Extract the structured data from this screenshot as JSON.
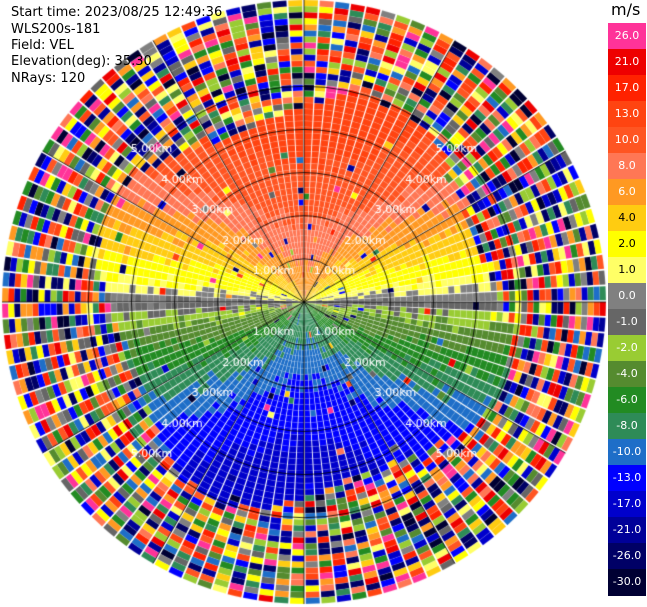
{
  "header": {
    "start_time": "Start time: 2023/08/25 12:49:36",
    "instrument": "WLS200s-181",
    "field": "Field: VEL",
    "elevation": "Elevation(deg): 35.30",
    "nrays": "NRays: 120"
  },
  "colorbar": {
    "unit": "m/s",
    "levels": [
      {
        "label": "26.0",
        "color": "#ff3399"
      },
      {
        "label": "21.0",
        "color": "#ee0000"
      },
      {
        "label": "17.0",
        "color": "#ff2200"
      },
      {
        "label": "13.0",
        "color": "#ff4411"
      },
      {
        "label": "10.0",
        "color": "#ff5522"
      },
      {
        "label": "8.0",
        "color": "#ff7755"
      },
      {
        "label": "6.0",
        "color": "#ff9922"
      },
      {
        "label": "4.0",
        "color": "#ffcc11"
      },
      {
        "label": "2.0",
        "color": "#ffff00"
      },
      {
        "label": "1.0",
        "color": "#ffff66"
      },
      {
        "label": "0.0",
        "color": "#808080"
      },
      {
        "label": "-1.0",
        "color": "#666666"
      },
      {
        "label": "-2.0",
        "color": "#99cc33"
      },
      {
        "label": "-4.0",
        "color": "#558b2f"
      },
      {
        "label": "-6.0",
        "color": "#228b22"
      },
      {
        "label": "-8.0",
        "color": "#2e8b57"
      },
      {
        "label": "-10.0",
        "color": "#1e6ec8"
      },
      {
        "label": "-13.0",
        "color": "#0000ff"
      },
      {
        "label": "-17.0",
        "color": "#0000cc"
      },
      {
        "label": "-21.0",
        "color": "#000099"
      },
      {
        "label": "-26.0",
        "color": "#000066"
      },
      {
        "label": "-30.0",
        "color": "#000033"
      }
    ]
  },
  "chart_data": {
    "type": "heatmap",
    "field": "VEL",
    "units": "m/s",
    "nrays": 120,
    "range_rings_km": [
      1.0,
      2.0,
      3.0,
      4.0,
      5.0
    ],
    "ring_labels": [
      "1.00km",
      "2.00km",
      "3.00km",
      "4.00km",
      "5.00km"
    ],
    "spoke_angles_deg": [
      0,
      30,
      60,
      90,
      120,
      150,
      180,
      210,
      240,
      270,
      300,
      330
    ],
    "max_range_km": 7.0,
    "velocity_pattern": {
      "north_sector": "positive (orange-red, ~10 to 17 m/s)",
      "south_sector": "negative (blue, ~-8 to -13 m/s)",
      "east_west_axis": "near zero (gray/yellow)",
      "far_range": "noise"
    }
  }
}
